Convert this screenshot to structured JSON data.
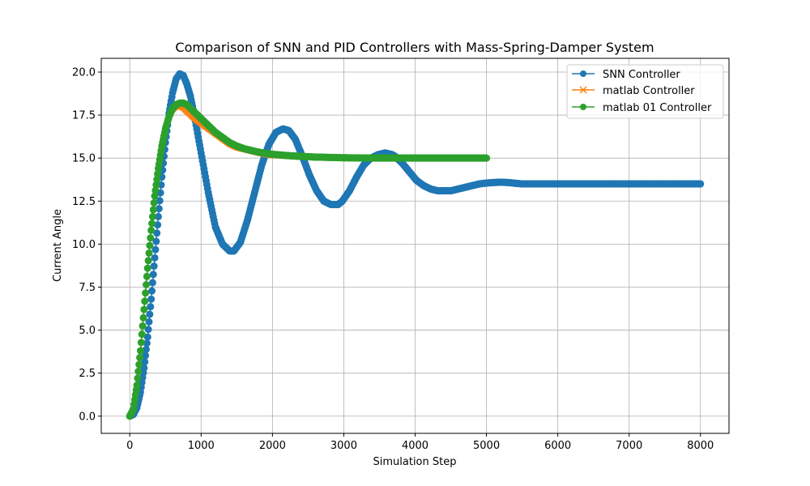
{
  "chart_data": {
    "type": "line",
    "title": "Comparison of SNN and PID Controllers with Mass-Spring-Damper System",
    "xlabel": "Simulation Step",
    "ylabel": "Current Angle",
    "xlim": [
      -400,
      8400
    ],
    "ylim": [
      -1.0,
      20.8
    ],
    "xticks": [
      0,
      1000,
      2000,
      3000,
      4000,
      5000,
      6000,
      7000,
      8000
    ],
    "xtick_labels": [
      "0",
      "1000",
      "2000",
      "3000",
      "4000",
      "5000",
      "6000",
      "7000",
      "8000"
    ],
    "yticks": [
      0,
      2.5,
      5,
      7.5,
      10,
      12.5,
      15,
      17.5,
      20
    ],
    "ytick_labels": [
      "0.0",
      "2.5",
      "5.0",
      "7.5",
      "10.0",
      "12.5",
      "15.0",
      "17.5",
      "20.0"
    ],
    "grid": true,
    "legend_position": "top-right",
    "series": [
      {
        "name": "SNN Controller",
        "color": "#1f77b4",
        "marker": "circle",
        "x": [
          0,
          50,
          100,
          150,
          200,
          250,
          300,
          350,
          400,
          450,
          500,
          550,
          600,
          650,
          700,
          750,
          800,
          850,
          900,
          1000,
          1100,
          1200,
          1300,
          1400,
          1460,
          1550,
          1650,
          1750,
          1850,
          1950,
          2050,
          2150,
          2230,
          2320,
          2420,
          2520,
          2620,
          2720,
          2820,
          2920,
          2980,
          3080,
          3180,
          3280,
          3380,
          3480,
          3580,
          3680,
          3720,
          3820,
          3920,
          4020,
          4120,
          4220,
          4320,
          4420,
          4500,
          4600,
          4700,
          4800,
          4900,
          5000,
          5100,
          5200,
          5300,
          5500,
          6000,
          7000,
          8000
        ],
        "values": [
          0.0,
          0.1,
          0.5,
          1.4,
          2.8,
          4.6,
          6.8,
          9.2,
          11.6,
          13.9,
          15.9,
          17.6,
          18.8,
          19.6,
          19.9,
          19.8,
          19.3,
          18.6,
          17.6,
          15.3,
          13.0,
          11.0,
          10.0,
          9.6,
          9.6,
          10.1,
          11.4,
          13.0,
          14.6,
          15.8,
          16.5,
          16.7,
          16.6,
          16.1,
          15.1,
          14.0,
          13.1,
          12.5,
          12.3,
          12.3,
          12.5,
          13.1,
          13.9,
          14.6,
          15.0,
          15.2,
          15.3,
          15.2,
          15.1,
          14.7,
          14.2,
          13.7,
          13.4,
          13.2,
          13.1,
          13.1,
          13.1,
          13.2,
          13.3,
          13.4,
          13.5,
          13.55,
          13.58,
          13.6,
          13.58,
          13.5,
          13.5,
          13.5,
          13.5
        ]
      },
      {
        "name": "matlab Controller",
        "color": "#ff7f0e",
        "marker": "x",
        "x": [
          0,
          50,
          100,
          150,
          200,
          250,
          300,
          350,
          400,
          450,
          500,
          550,
          600,
          650,
          700,
          750,
          800,
          850,
          900,
          1000,
          1100,
          1200,
          1300,
          1400,
          1500,
          1600,
          1700,
          1800,
          1900,
          2000,
          2200,
          2400,
          2600,
          2800,
          3000,
          3500,
          4000,
          4500,
          5000
        ],
        "values": [
          0.0,
          0.4,
          1.8,
          3.8,
          6.2,
          8.6,
          10.8,
          12.8,
          14.4,
          15.7,
          16.7,
          17.4,
          17.8,
          18.0,
          18.0,
          17.9,
          17.7,
          17.5,
          17.3,
          17.0,
          16.7,
          16.4,
          16.1,
          15.8,
          15.6,
          15.5,
          15.4,
          15.3,
          15.2,
          15.15,
          15.1,
          15.05,
          15.03,
          15.02,
          15.01,
          15.0,
          15.0,
          15.0,
          15.0
        ]
      },
      {
        "name": "matlab 01 Controller",
        "color": "#2ca02c",
        "marker": "circle",
        "x": [
          0,
          50,
          100,
          150,
          200,
          250,
          300,
          350,
          400,
          450,
          500,
          550,
          600,
          650,
          700,
          750,
          800,
          850,
          900,
          1000,
          1100,
          1200,
          1300,
          1400,
          1500,
          1600,
          1700,
          1800,
          1900,
          2000,
          2200,
          2400,
          2600,
          2800,
          3000,
          3500,
          4000,
          4500,
          5000
        ],
        "values": [
          0.0,
          0.4,
          1.8,
          3.8,
          6.2,
          8.6,
          10.8,
          12.8,
          14.4,
          15.7,
          16.7,
          17.4,
          17.9,
          18.1,
          18.2,
          18.2,
          18.1,
          17.9,
          17.7,
          17.3,
          16.9,
          16.5,
          16.2,
          15.9,
          15.7,
          15.55,
          15.45,
          15.35,
          15.28,
          15.22,
          15.15,
          15.1,
          15.06,
          15.04,
          15.02,
          15.0,
          15.0,
          15.0,
          15.0
        ]
      }
    ]
  }
}
